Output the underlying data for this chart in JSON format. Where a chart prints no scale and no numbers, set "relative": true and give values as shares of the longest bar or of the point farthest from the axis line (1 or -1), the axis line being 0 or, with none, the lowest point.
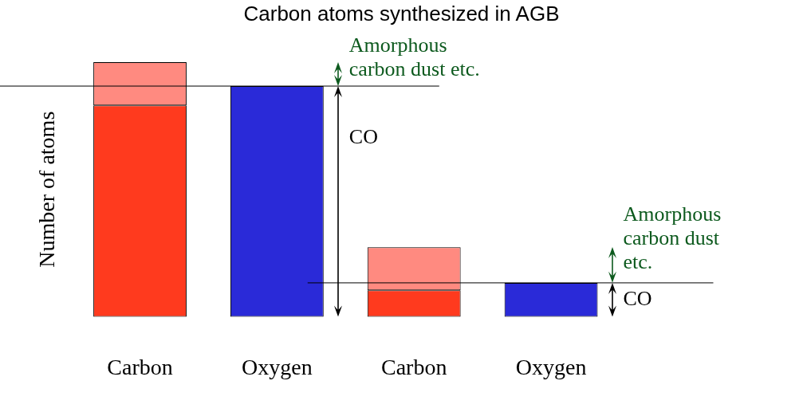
{
  "chart_data": {
    "type": "bar",
    "title": "Carbon atoms synthesized in AGB",
    "ylabel": "Number of atoms",
    "relative": true,
    "stacked": true,
    "categories": [
      "Carbon",
      "Oxygen",
      "Carbon",
      "Oxygen"
    ],
    "series": [
      {
        "colors": [
          "#ff3a1e",
          "#2a2ad8",
          "#ff3a1e",
          "#2a2ad8"
        ],
        "values": [
          0.83,
          0.906,
          0.104,
          0.133
        ]
      },
      {
        "color": "#ff8a80",
        "values": [
          0.17,
          null,
          0.169,
          null
        ]
      }
    ],
    "ref_lines": [
      {
        "axis": "y",
        "value": 0.906
      },
      {
        "axis": "y",
        "value": 0.133
      }
    ],
    "annotations": [
      "Amorphous carbon dust etc.",
      "CO",
      "Amorphous carbon dust etc.",
      "CO"
    ]
  }
}
